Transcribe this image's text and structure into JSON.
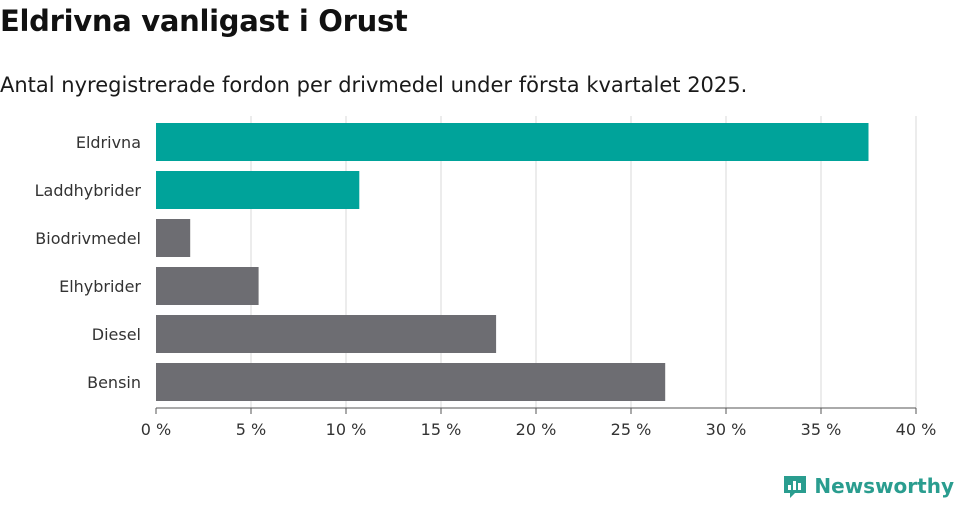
{
  "header": {
    "title": "Eldrivna vanligast i Orust",
    "subtitle": "Antal nyregistrerade fordon per drivmedel under första kvartalet 2025."
  },
  "brand": {
    "name": "Newsworthy",
    "color": "#2a9d8f"
  },
  "chart_data": {
    "type": "bar",
    "orientation": "horizontal",
    "categories": [
      "Eldrivna",
      "Laddhybrider",
      "Biodrivmedel",
      "Elhybrider",
      "Diesel",
      "Bensin"
    ],
    "values": [
      37.5,
      10.7,
      1.8,
      5.4,
      17.9,
      26.8
    ],
    "colors": [
      "#00a39a",
      "#00a39a",
      "#6d6d72",
      "#6d6d72",
      "#6d6d72",
      "#6d6d72"
    ],
    "xlim": [
      0,
      40
    ],
    "xticks": [
      0,
      5,
      10,
      15,
      20,
      25,
      30,
      35,
      40
    ],
    "tick_suffix": " %",
    "grid": true
  }
}
